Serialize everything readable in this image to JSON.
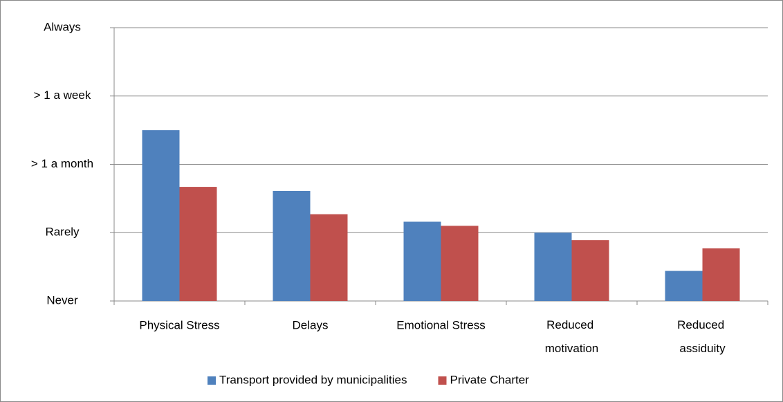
{
  "chart_data": {
    "type": "bar",
    "categories": [
      "Physical Stress",
      "Delays",
      "Emotional Stress",
      "Reduced motivation",
      "Reduced assiduity"
    ],
    "series": [
      {
        "name": "Transport provided by municipalities",
        "color": "#4f81bd",
        "values": [
          2.5,
          1.61,
          1.16,
          1.0,
          0.44
        ]
      },
      {
        "name": "Private Charter",
        "color": "#c0504d",
        "values": [
          1.67,
          1.27,
          1.1,
          0.89,
          0.77
        ]
      }
    ],
    "ylim": [
      0,
      4
    ],
    "yticks": [
      {
        "value": 0,
        "label": "Never"
      },
      {
        "value": 1,
        "label": "Rarely"
      },
      {
        "value": 2,
        "label": "> 1 a month"
      },
      {
        "value": 3,
        "label": "> 1 a week"
      },
      {
        "value": 4,
        "label": "Always"
      }
    ],
    "grid": true,
    "legend": "bottom"
  }
}
